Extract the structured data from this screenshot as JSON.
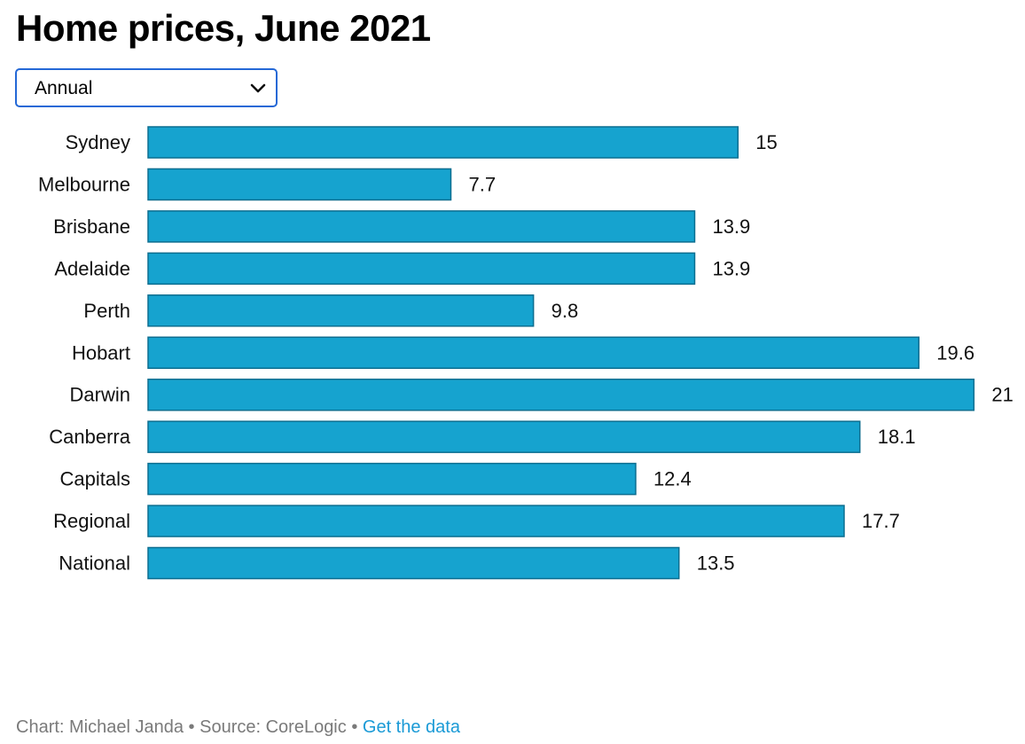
{
  "header": {
    "title": "Home prices, June 2021"
  },
  "selector": {
    "value": "Annual"
  },
  "chart_data": {
    "type": "bar",
    "orientation": "horizontal",
    "categories": [
      "Sydney",
      "Melbourne",
      "Brisbane",
      "Adelaide",
      "Perth",
      "Hobart",
      "Darwin",
      "Canberra",
      "Capitals",
      "Regional",
      "National"
    ],
    "values": [
      15,
      7.7,
      13.9,
      13.9,
      9.8,
      19.6,
      21,
      18.1,
      12.4,
      17.7,
      13.5
    ],
    "value_labels": [
      "15",
      "7.7",
      "13.9",
      "13.9",
      "9.8",
      "19.6",
      "21",
      "18.1",
      "12.4",
      "17.7",
      "13.5"
    ],
    "xlim": [
      0,
      21
    ],
    "grid": false,
    "bar_color": "#16a3cf",
    "bar_stroke": "#0c6e90"
  },
  "footer": {
    "credit": "Chart: Michael Janda",
    "separator": " • ",
    "source": "Source: CoreLogic",
    "link_label": "Get the data",
    "link_color": "#1a9ad6"
  }
}
